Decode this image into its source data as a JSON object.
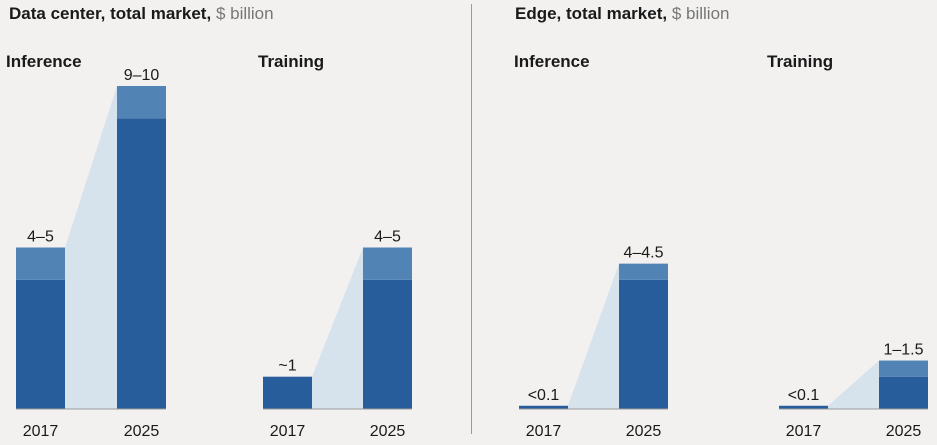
{
  "colors": {
    "bar_dark": "#275d9a",
    "bar_light": "#5283b5",
    "connector": "#d7e3ec",
    "baseline": "#9a9a9a"
  },
  "panels": [
    {
      "title_bold": "Data center, total market,",
      "title_unit": "$ billion"
    },
    {
      "title_bold": "Edge, total market,",
      "title_unit": "$ billion"
    }
  ],
  "chart_data": [
    {
      "type": "bar",
      "panel": "Data center, total market, $ billion",
      "group": "Inference",
      "categories": [
        "2017",
        "2025"
      ],
      "ranges": [
        [
          4,
          5
        ],
        [
          9,
          10
        ]
      ],
      "labels": [
        "4–5",
        "9–10"
      ],
      "ylim": [
        0,
        10
      ]
    },
    {
      "type": "bar",
      "panel": "Data center, total market, $ billion",
      "group": "Training",
      "categories": [
        "2017",
        "2025"
      ],
      "ranges": [
        [
          1,
          1
        ],
        [
          4,
          5
        ]
      ],
      "labels": [
        "~1",
        "4–5"
      ],
      "ylim": [
        0,
        10
      ]
    },
    {
      "type": "bar",
      "panel": "Edge, total market, $ billion",
      "group": "Inference",
      "categories": [
        "2017",
        "2025"
      ],
      "ranges": [
        [
          0.1,
          0.1
        ],
        [
          4,
          4.5
        ]
      ],
      "labels": [
        "<0.1",
        "4–4.5"
      ],
      "ylim": [
        0,
        10
      ]
    },
    {
      "type": "bar",
      "panel": "Edge, total market, $ billion",
      "group": "Training",
      "categories": [
        "2017",
        "2025"
      ],
      "ranges": [
        [
          0.1,
          0.1
        ],
        [
          1,
          1.5
        ]
      ],
      "labels": [
        "<0.1",
        "1–1.5"
      ],
      "ylim": [
        0,
        10
      ]
    }
  ]
}
